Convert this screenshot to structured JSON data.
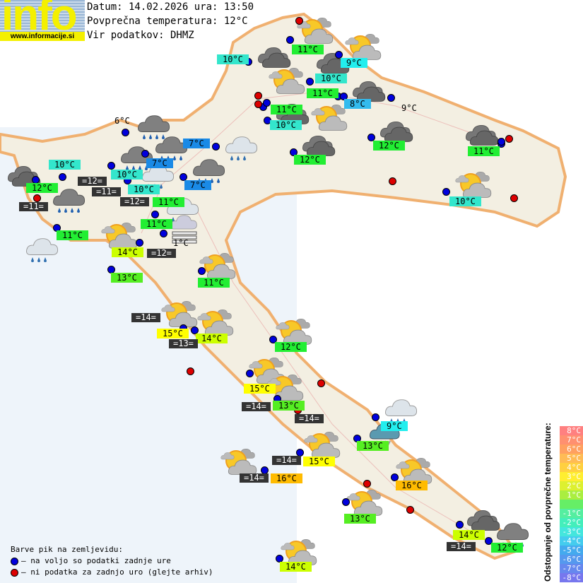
{
  "logo": {
    "word": "info",
    "url": "www.informacije.si"
  },
  "header": {
    "date_line": "Datum: 14.02.2026 ura: 13:50",
    "avg_temp_line": "Povprečna temperatura: 12°C",
    "source_line": "Vir podatkov: DHMZ"
  },
  "colors": {
    "blue_dot": "#0000dd",
    "red_dot": "#dd0000",
    "wind_bg": "#333333"
  },
  "temperatures": [
    {
      "text": "10°C",
      "color": "#33e6cc"
    },
    {
      "text": "11°C",
      "color": "#22ee33"
    },
    {
      "text": "9°C",
      "color": "#22eeee"
    },
    {
      "text": "10°C",
      "color": "#33e6cc"
    },
    {
      "text": "11°C",
      "color": "#22ee33"
    },
    {
      "text": "8°C",
      "color": "#33bbee"
    },
    {
      "text": "9°C",
      "color": ""
    },
    {
      "text": "11°C",
      "color": "#22ee33"
    },
    {
      "text": "10°C",
      "color": "#33e6cc"
    },
    {
      "text": "12°C",
      "color": "#22ee33"
    },
    {
      "text": "12°C",
      "color": "#22ee33"
    },
    {
      "text": "11°C",
      "color": "#22ee33"
    },
    {
      "text": "10°C",
      "color": "#33e6cc"
    },
    {
      "text": "6°C",
      "color": ""
    },
    {
      "text": "7°C",
      "color": "#1a8ae6"
    },
    {
      "text": "7°C",
      "color": "#1a8ae6"
    },
    {
      "text": "7°C",
      "color": "#1a8ae6"
    },
    {
      "text": "10°C",
      "color": "#33e6cc"
    },
    {
      "text": "12°C",
      "color": "#22ee33"
    },
    {
      "text": "10°C",
      "color": "#33e6cc"
    },
    {
      "text": "10°C",
      "color": "#33e6cc"
    },
    {
      "text": "11°C",
      "color": "#22ee33"
    },
    {
      "text": "11°C",
      "color": "#22ee33"
    },
    {
      "text": "11°C",
      "color": "#22ee33"
    },
    {
      "text": "14°C",
      "color": "#ccff00"
    },
    {
      "text": "1°C",
      "color": ""
    },
    {
      "text": "13°C",
      "color": "#55ee22"
    },
    {
      "text": "11°C",
      "color": "#22ee33"
    },
    {
      "text": "15°C",
      "color": "#ffff00"
    },
    {
      "text": "14°C",
      "color": "#ccff00"
    },
    {
      "text": "12°C",
      "color": "#22ee33"
    },
    {
      "text": "15°C",
      "color": "#ffff00"
    },
    {
      "text": "13°C",
      "color": "#55ee22"
    },
    {
      "text": "9°C",
      "color": "#22eeee"
    },
    {
      "text": "13°C",
      "color": "#55ee22"
    },
    {
      "text": "15°C",
      "color": "#ffff00"
    },
    {
      "text": "16°C",
      "color": "#ffbb00"
    },
    {
      "text": "16°C",
      "color": "#ffbb00"
    },
    {
      "text": "13°C",
      "color": "#55ee22"
    },
    {
      "text": "14°C",
      "color": "#ccff00"
    },
    {
      "text": "12°C",
      "color": "#22ee33"
    },
    {
      "text": "14°C",
      "color": "#ccff00"
    }
  ],
  "winds": [
    "=12=",
    "=11=",
    "=12=",
    "=11=",
    "=12=",
    "=14=",
    "=13=",
    "=14=",
    "=14=",
    "=14=",
    "=14=",
    "=14="
  ],
  "weather_icons": [
    "partly-sunny",
    "partly-sunny",
    "partly-sunny",
    "partly-sunny",
    "partly-sunny",
    "partly-sunny",
    "partly-sunny",
    "partly-sunny",
    "partly-sunny",
    "partly-sunny",
    "partly-sunny",
    "partly-sunny",
    "partly-sunny",
    "partly-sunny",
    "partly-sunny",
    "partly-sunny",
    "partly-sunny",
    "overcast",
    "overcast",
    "overcast",
    "overcast",
    "overcast",
    "overcast",
    "overcast",
    "overcast",
    "overcast",
    "rain",
    "rain",
    "rain",
    "rain",
    "rain",
    "rain",
    "light-rain",
    "light-rain",
    "light-rain",
    "light-rain",
    "light-rain",
    "shower",
    "fog"
  ],
  "legend": {
    "title": "Barve pik na zemljevidu:",
    "blue": "– na voljo so podatki zadnje ure",
    "red": "– ni podatka za zadnjo uro (glejte arhiv)"
  },
  "deviation_scale": {
    "title": "Odstopanje od povprečne temperature:",
    "steps": [
      {
        "label": "8°C",
        "color": "#ff8080"
      },
      {
        "label": "7°C",
        "color": "#ff9070"
      },
      {
        "label": "6°C",
        "color": "#ffa060"
      },
      {
        "label": "5°C",
        "color": "#ffbb55"
      },
      {
        "label": "4°C",
        "color": "#ffd040"
      },
      {
        "label": "3°C",
        "color": "#ffee30"
      },
      {
        "label": "2°C",
        "color": "#ddf030"
      },
      {
        "label": "1°C",
        "color": "#aaee40"
      },
      {
        "label": "",
        "color": "#66ee66"
      },
      {
        "label": "-1°C",
        "color": "#55eea0"
      },
      {
        "label": "-2°C",
        "color": "#44eebb"
      },
      {
        "label": "-3°C",
        "color": "#44e6dd"
      },
      {
        "label": "-4°C",
        "color": "#44ccee"
      },
      {
        "label": "-5°C",
        "color": "#44aaee"
      },
      {
        "label": "-6°C",
        "color": "#5599ee"
      },
      {
        "label": "-7°C",
        "color": "#6688ee"
      },
      {
        "label": "-8°C",
        "color": "#7777ee"
      }
    ]
  }
}
